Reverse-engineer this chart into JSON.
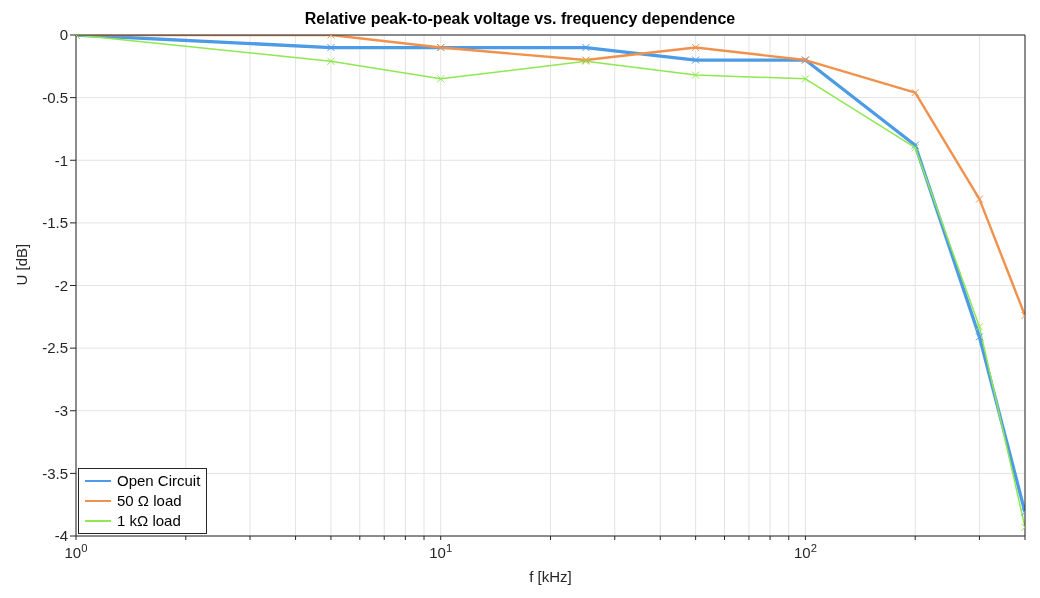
{
  "chart_data": {
    "type": "line",
    "title": "Relative peak-to-peak voltage vs. frequency dependence",
    "xlabel": "f [kHz]",
    "ylabel": "U [dB]",
    "x": [
      1,
      5,
      10,
      25,
      50,
      100,
      200,
      300,
      400
    ],
    "series": [
      {
        "name": "Open Circuit",
        "color": "#4d9be6",
        "values": [
          0,
          -0.1,
          -0.1,
          -0.1,
          -0.2,
          -0.2,
          -0.88,
          -2.41,
          -3.81
        ]
      },
      {
        "name": "50 Ω load",
        "color": "#f0914d",
        "values": [
          0,
          0,
          -0.1,
          -0.2,
          -0.1,
          -0.2,
          -0.46,
          -1.31,
          -2.24
        ]
      },
      {
        "name": "1 kΩ load",
        "color": "#8ee84f",
        "values": [
          0,
          -0.21,
          -0.35,
          -0.21,
          -0.32,
          -0.35,
          -0.9,
          -2.33,
          -3.93
        ]
      }
    ],
    "log": "x",
    "xlim": [
      1,
      400
    ],
    "xticks": [
      {
        "value": 1,
        "label": "10$^{0}$"
      },
      {
        "value": 2,
        "label": null
      },
      {
        "value": 3,
        "label": null
      },
      {
        "value": 4,
        "label": null
      },
      {
        "value": 5,
        "label": null
      },
      {
        "value": 6,
        "label": null
      },
      {
        "value": 7,
        "label": null
      },
      {
        "value": 8,
        "label": null
      },
      {
        "value": 9,
        "label": null
      },
      {
        "value": 10,
        "label": "10$^{1}$"
      },
      {
        "value": 20,
        "label": null
      },
      {
        "value": 30,
        "label": null
      },
      {
        "value": 40,
        "label": null
      },
      {
        "value": 50,
        "label": null
      },
      {
        "value": 60,
        "label": null
      },
      {
        "value": 70,
        "label": null
      },
      {
        "value": 80,
        "label": null
      },
      {
        "value": 90,
        "label": null
      },
      {
        "value": 100,
        "label": "10$^{2}$"
      },
      {
        "value": 200,
        "label": null
      },
      {
        "value": 300,
        "label": null
      },
      {
        "value": 400,
        "label": null
      }
    ],
    "ylim": [
      -4,
      0
    ],
    "yticks": [
      -4,
      -3.5,
      -3,
      -2.5,
      -2,
      -1.5,
      -1,
      -0.5,
      0
    ],
    "grid": true,
    "legend": "bottom left",
    "marker": "cross",
    "line_style": "solid"
  }
}
